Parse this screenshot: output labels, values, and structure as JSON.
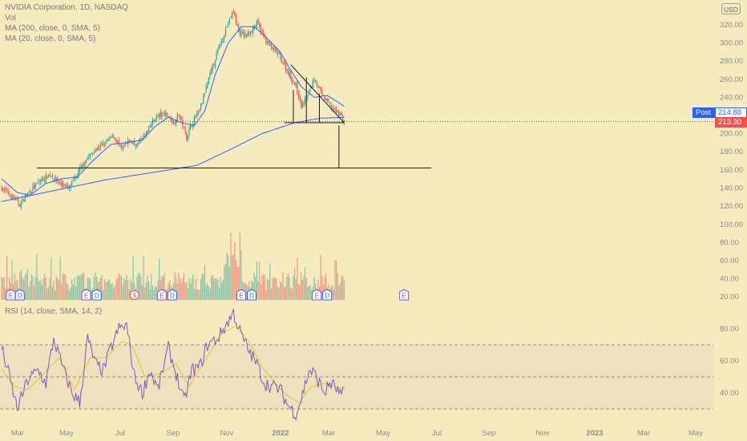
{
  "legend": {
    "symbol_line": "NVIDIA Corporation, 1D, NASDAQ",
    "vol": "Vol",
    "ma200": "MA (200, close, 0, SMA, 5)",
    "ma20": "MA (20, close, 0, SMA, 5)",
    "rsi": "RSI (14, close, SMA, 14, 2)"
  },
  "currency_button": "USD",
  "post_label": "Post",
  "post_price": "214.88",
  "last_price": "213.30",
  "colors": {
    "background": "#f5ebbf",
    "up": "#26a69a",
    "down": "#ef5350",
    "ma200": "#2962ff",
    "ma20": "#2962ff",
    "rsi": "#7e57c2",
    "rsi_ma": "#e6c229",
    "rsi_band": "#eee1bd",
    "post_tag": "#2962ff",
    "price_tag": "#ef5350"
  },
  "chart_data": {
    "type": "candlestick",
    "title": "NVIDIA Corporation, 1D, NASDAQ",
    "price_axis": {
      "ticks": [
        120,
        140,
        160,
        180,
        200,
        220,
        240,
        260,
        280,
        300,
        320
      ],
      "labels": [
        "120.00",
        "140.00",
        "160.00",
        "180.00",
        "200.00",
        "220.00",
        "240.00",
        "260.00",
        "280.00",
        "300.00",
        "320.00"
      ]
    },
    "volume_axis": {
      "ticks": [
        20,
        40,
        60,
        80,
        100
      ],
      "labels": [
        "20.00",
        "40.00",
        "60.00",
        "80.00",
        "100.00"
      ]
    },
    "rsi_axis": {
      "ticks": [
        40,
        60,
        80
      ],
      "labels": [
        "40.00",
        "60.00",
        "80.00"
      ],
      "bands": [
        30,
        50,
        70
      ]
    },
    "time_axis": [
      "Mar",
      "May",
      "Jul",
      "Sep",
      "Nov",
      "2022",
      "Mar",
      "May",
      "Jul",
      "Sep",
      "Nov",
      "2023",
      "Mar",
      "May"
    ],
    "close_anchors": [
      [
        0,
        140
      ],
      [
        10,
        128
      ],
      [
        14,
        122
      ],
      [
        20,
        134
      ],
      [
        30,
        148
      ],
      [
        37,
        155
      ],
      [
        45,
        145
      ],
      [
        52,
        140
      ],
      [
        56,
        150
      ],
      [
        64,
        170
      ],
      [
        72,
        182
      ],
      [
        80,
        190
      ],
      [
        86,
        198
      ],
      [
        92,
        182
      ],
      [
        98,
        192
      ],
      [
        104,
        188
      ],
      [
        112,
        202
      ],
      [
        118,
        218
      ],
      [
        126,
        222
      ],
      [
        132,
        212
      ],
      [
        136,
        222
      ],
      [
        142,
        196
      ],
      [
        146,
        212
      ],
      [
        152,
        225
      ],
      [
        160,
        265
      ],
      [
        168,
        300
      ],
      [
        174,
        322
      ],
      [
        178,
        335
      ],
      [
        182,
        312
      ],
      [
        188,
        308
      ],
      [
        196,
        322
      ],
      [
        204,
        300
      ],
      [
        212,
        288
      ],
      [
        220,
        268
      ],
      [
        226,
        252
      ],
      [
        230,
        230
      ],
      [
        235,
        242
      ],
      [
        240,
        262
      ],
      [
        246,
        242
      ],
      [
        252,
        232
      ],
      [
        256,
        225
      ],
      [
        260,
        222
      ],
      [
        263,
        213.3
      ]
    ],
    "ma20_anchors": [
      [
        0,
        150
      ],
      [
        12,
        135
      ],
      [
        22,
        132
      ],
      [
        34,
        145
      ],
      [
        46,
        150
      ],
      [
        58,
        152
      ],
      [
        70,
        170
      ],
      [
        84,
        188
      ],
      [
        96,
        190
      ],
      [
        108,
        193
      ],
      [
        118,
        208
      ],
      [
        128,
        218
      ],
      [
        138,
        212
      ],
      [
        148,
        209
      ],
      [
        156,
        225
      ],
      [
        164,
        265
      ],
      [
        174,
        300
      ],
      [
        184,
        318
      ],
      [
        194,
        318
      ],
      [
        204,
        305
      ],
      [
        214,
        290
      ],
      [
        222,
        270
      ],
      [
        230,
        252
      ],
      [
        240,
        240
      ],
      [
        250,
        242
      ],
      [
        258,
        235
      ],
      [
        263,
        230
      ]
    ],
    "ma200_anchors": [
      [
        0,
        125
      ],
      [
        40,
        137
      ],
      [
        80,
        149
      ],
      [
        120,
        158
      ],
      [
        150,
        165
      ],
      [
        175,
        182
      ],
      [
        200,
        200
      ],
      [
        225,
        212
      ],
      [
        245,
        217
      ],
      [
        263,
        218
      ]
    ],
    "volume_events": [
      {
        "type": "earnings",
        "label": "E",
        "bar": 7
      },
      {
        "type": "dividend",
        "label": "D",
        "bar": 14
      },
      {
        "type": "earnings",
        "label": "E",
        "bar": 65
      },
      {
        "type": "dividend",
        "label": "D",
        "bar": 73
      },
      {
        "type": "split",
        "label": "S",
        "bar": 102
      },
      {
        "type": "earnings",
        "label": "E",
        "bar": 123
      },
      {
        "type": "dividend",
        "label": "D",
        "bar": 131
      },
      {
        "type": "earnings",
        "label": "E",
        "bar": 184
      },
      {
        "type": "dividend",
        "label": "D",
        "bar": 192
      },
      {
        "type": "earnings",
        "label": "E",
        "bar": 242
      },
      {
        "type": "dividend",
        "label": "D",
        "bar": 250
      },
      {
        "type": "earnings",
        "label": "E",
        "bar": 309
      }
    ],
    "rsi_anchors": [
      [
        0,
        68
      ],
      [
        6,
        50
      ],
      [
        12,
        30
      ],
      [
        20,
        48
      ],
      [
        28,
        54
      ],
      [
        34,
        46
      ],
      [
        40,
        74
      ],
      [
        46,
        58
      ],
      [
        54,
        40
      ],
      [
        60,
        34
      ],
      [
        66,
        74
      ],
      [
        72,
        58
      ],
      [
        78,
        54
      ],
      [
        84,
        68
      ],
      [
        90,
        80
      ],
      [
        96,
        82
      ],
      [
        102,
        50
      ],
      [
        108,
        40
      ],
      [
        114,
        54
      ],
      [
        120,
        42
      ],
      [
        128,
        68
      ],
      [
        134,
        52
      ],
      [
        140,
        34
      ],
      [
        146,
        54
      ],
      [
        152,
        56
      ],
      [
        158,
        70
      ],
      [
        166,
        74
      ],
      [
        172,
        82
      ],
      [
        178,
        90
      ],
      [
        184,
        76
      ],
      [
        190,
        66
      ],
      [
        196,
        58
      ],
      [
        202,
        46
      ],
      [
        208,
        44
      ],
      [
        214,
        42
      ],
      [
        220,
        32
      ],
      [
        226,
        27
      ],
      [
        230,
        36
      ],
      [
        236,
        54
      ],
      [
        240,
        52
      ],
      [
        244,
        46
      ],
      [
        248,
        40
      ],
      [
        252,
        46
      ],
      [
        256,
        44
      ],
      [
        260,
        38
      ],
      [
        263,
        40
      ]
    ],
    "rsi_ma_anchors": [
      [
        0,
        55
      ],
      [
        10,
        44
      ],
      [
        20,
        42
      ],
      [
        30,
        50
      ],
      [
        44,
        62
      ],
      [
        56,
        42
      ],
      [
        68,
        62
      ],
      [
        80,
        62
      ],
      [
        92,
        72
      ],
      [
        100,
        70
      ],
      [
        110,
        50
      ],
      [
        122,
        52
      ],
      [
        134,
        58
      ],
      [
        144,
        44
      ],
      [
        156,
        60
      ],
      [
        168,
        76
      ],
      [
        180,
        82
      ],
      [
        190,
        72
      ],
      [
        200,
        56
      ],
      [
        210,
        46
      ],
      [
        220,
        38
      ],
      [
        228,
        34
      ],
      [
        238,
        44
      ],
      [
        248,
        46
      ],
      [
        263,
        42
      ]
    ],
    "annotations": [
      {
        "type": "trend_line",
        "from": [
          222,
          276
        ],
        "to": [
          263,
          212
        ]
      },
      {
        "type": "horizontal_line",
        "from": [
          217,
          212
        ],
        "to": [
          263,
          212
        ]
      },
      {
        "type": "horizontal_line",
        "from": [
          27,
          162
        ],
        "to": [
          330,
          162
        ]
      },
      {
        "type": "vertical_line",
        "from": [
          259,
          209
        ],
        "to": [
          259,
          162
        ]
      },
      {
        "type": "vertical_line",
        "from": [
          224,
          212
        ],
        "to": [
          224,
          248
        ]
      },
      {
        "type": "vertical_line",
        "from": [
          234,
          212
        ],
        "to": [
          234,
          262
        ]
      },
      {
        "type": "vertical_line",
        "from": [
          244,
          212
        ],
        "to": [
          244,
          244
        ]
      }
    ]
  }
}
